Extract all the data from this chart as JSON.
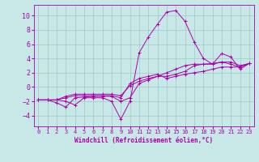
{
  "bg_color": "#c8e8e8",
  "grid_color": "#a0c8c8",
  "line_color": "#aa00aa",
  "marker": "+",
  "xlim": [
    -0.5,
    23.5
  ],
  "ylim": [
    -5.5,
    11.5
  ],
  "xticks": [
    0,
    1,
    2,
    3,
    4,
    5,
    6,
    7,
    8,
    9,
    10,
    11,
    12,
    13,
    14,
    15,
    16,
    17,
    18,
    19,
    20,
    21,
    22,
    23
  ],
  "yticks": [
    -4,
    -2,
    0,
    2,
    4,
    6,
    8,
    10
  ],
  "xlabel": "Windchill (Refroidissement éolien,°C)",
  "series": [
    [
      -1.8,
      -1.8,
      -1.8,
      -2.0,
      -2.5,
      -1.5,
      -1.5,
      -1.5,
      -2.0,
      -4.5,
      -2.0,
      4.8,
      7.0,
      8.8,
      10.5,
      10.7,
      9.2,
      6.3,
      4.0,
      3.2,
      4.7,
      4.2,
      2.5,
      3.3
    ],
    [
      -1.8,
      -1.8,
      -1.8,
      -1.5,
      -1.2,
      -1.2,
      -1.2,
      -1.2,
      -1.2,
      -1.5,
      0.5,
      1.2,
      1.5,
      1.8,
      1.2,
      1.5,
      1.8,
      2.0,
      2.2,
      2.5,
      2.8,
      2.8,
      2.8,
      3.3
    ],
    [
      -1.8,
      -1.8,
      -1.8,
      -1.3,
      -1.0,
      -1.0,
      -1.0,
      -1.0,
      -1.0,
      -1.2,
      0.2,
      0.8,
      1.2,
      1.5,
      1.5,
      1.8,
      2.2,
      3.0,
      3.2,
      3.3,
      3.5,
      3.2,
      2.8,
      3.3
    ],
    [
      -1.8,
      -1.8,
      -2.2,
      -2.8,
      -1.5,
      -1.4,
      -1.3,
      -1.3,
      -1.3,
      -2.0,
      -1.5,
      0.5,
      1.0,
      1.5,
      2.0,
      2.5,
      3.0,
      3.2,
      3.2,
      3.2,
      3.5,
      3.5,
      3.0,
      3.3
    ]
  ],
  "tick_fontsize_x": 5.0,
  "tick_fontsize_y": 6.0,
  "xlabel_fontsize": 5.5,
  "linewidth": 0.7,
  "markersize": 2.5,
  "markeredgewidth": 0.7
}
